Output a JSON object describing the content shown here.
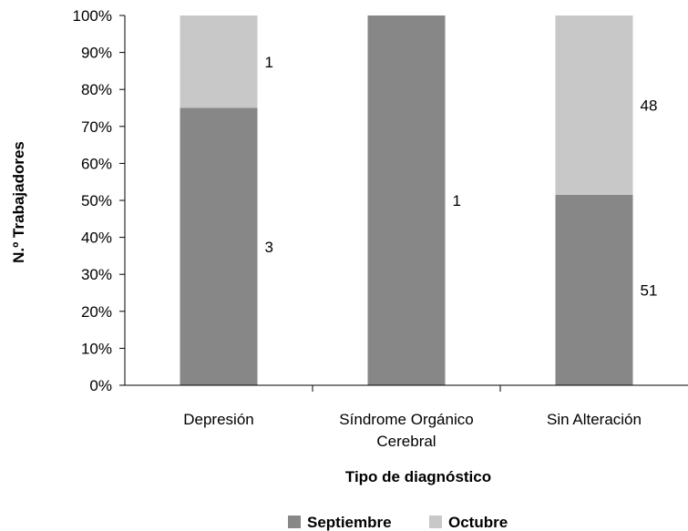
{
  "chart_data": {
    "type": "bar",
    "stacked": "percent",
    "categories": [
      [
        "Depresión"
      ],
      [
        "Síndrome Orgánico",
        "Cerebral"
      ],
      [
        "Sin Alteración"
      ]
    ],
    "series": [
      {
        "name": "Septiembre",
        "values": [
          3,
          1,
          51
        ],
        "color": "#878787"
      },
      {
        "name": "Octubre",
        "values": [
          1,
          0,
          48
        ],
        "color": "#c8c8c8"
      }
    ],
    "data_labels": [
      {
        "category": 0,
        "series": 0,
        "text": "3"
      },
      {
        "category": 0,
        "series": 1,
        "text": "1"
      },
      {
        "category": 1,
        "series": 0,
        "text": "1"
      },
      {
        "category": 2,
        "series": 0,
        "text": "51"
      },
      {
        "category": 2,
        "series": 1,
        "text": "48"
      }
    ],
    "yticks": [
      "0%",
      "10%",
      "20%",
      "30%",
      "40%",
      "50%",
      "60%",
      "70%",
      "80%",
      "90%",
      "100%"
    ],
    "ylim": [
      0,
      100
    ],
    "xlabel": "Tipo de diagnóstico",
    "ylabel": "N.º Trabajadores",
    "legend": {
      "position": "bottom",
      "entries": [
        "Septiembre",
        "Octubre"
      ]
    },
    "grid": false
  }
}
